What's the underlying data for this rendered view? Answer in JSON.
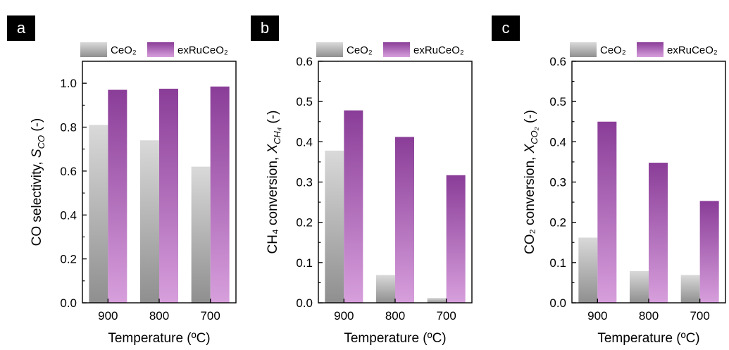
{
  "colors": {
    "ceo2_top": "#d9d9d9",
    "ceo2_bottom": "#8f8f8f",
    "exru_top": "#8a3d98",
    "exru_bottom": "#d79fdc",
    "panel_label_bg": "#000000"
  },
  "chart_data": [
    {
      "panel": "a",
      "type": "bar",
      "categories": [
        "900",
        "800",
        "700"
      ],
      "series": [
        {
          "name": "CeO₂",
          "values": [
            0.81,
            0.74,
            0.62
          ]
        },
        {
          "name": "exRuCeO₂",
          "values": [
            0.97,
            0.975,
            0.985
          ]
        }
      ],
      "xlabel": "Temperature (ºC)",
      "ylabel": {
        "main": "CO selectivity, ",
        "var": "S",
        "sub": "CO",
        "unit": " (-)"
      },
      "ylim": [
        0,
        1.1
      ],
      "yticks": [
        "0.0",
        "0.2",
        "0.4",
        "0.6",
        "0.8",
        "1.0"
      ],
      "legend": "top"
    },
    {
      "panel": "b",
      "type": "bar",
      "categories": [
        "900",
        "800",
        "700"
      ],
      "series": [
        {
          "name": "CeO₂",
          "values": [
            0.378,
            0.069,
            0.012
          ]
        },
        {
          "name": "exRuCeO₂",
          "values": [
            0.478,
            0.412,
            0.317
          ]
        }
      ],
      "xlabel": "Temperature (ºC)",
      "ylabel": {
        "main": "CH₄ conversion, ",
        "var": "X",
        "sub": "CH₄",
        "unit": " (-)"
      },
      "ylim": [
        0,
        0.6
      ],
      "yticks": [
        "0.0",
        "0.1",
        "0.2",
        "0.3",
        "0.4",
        "0.5",
        "0.6"
      ],
      "legend": "top"
    },
    {
      "panel": "c",
      "type": "bar",
      "categories": [
        "900",
        "800",
        "700"
      ],
      "series": [
        {
          "name": "CeO₂",
          "values": [
            0.162,
            0.079,
            0.069
          ]
        },
        {
          "name": "exRuCeO₂",
          "values": [
            0.45,
            0.348,
            0.253
          ]
        }
      ],
      "xlabel": "Temperature (ºC)",
      "ylabel": {
        "main": "CO₂ conversion, ",
        "var": "X",
        "sub": "CO₂",
        "unit": " (-)"
      },
      "ylim": [
        0,
        0.6
      ],
      "yticks": [
        "0.0",
        "0.1",
        "0.2",
        "0.3",
        "0.4",
        "0.5",
        "0.6"
      ],
      "legend": "top"
    }
  ]
}
